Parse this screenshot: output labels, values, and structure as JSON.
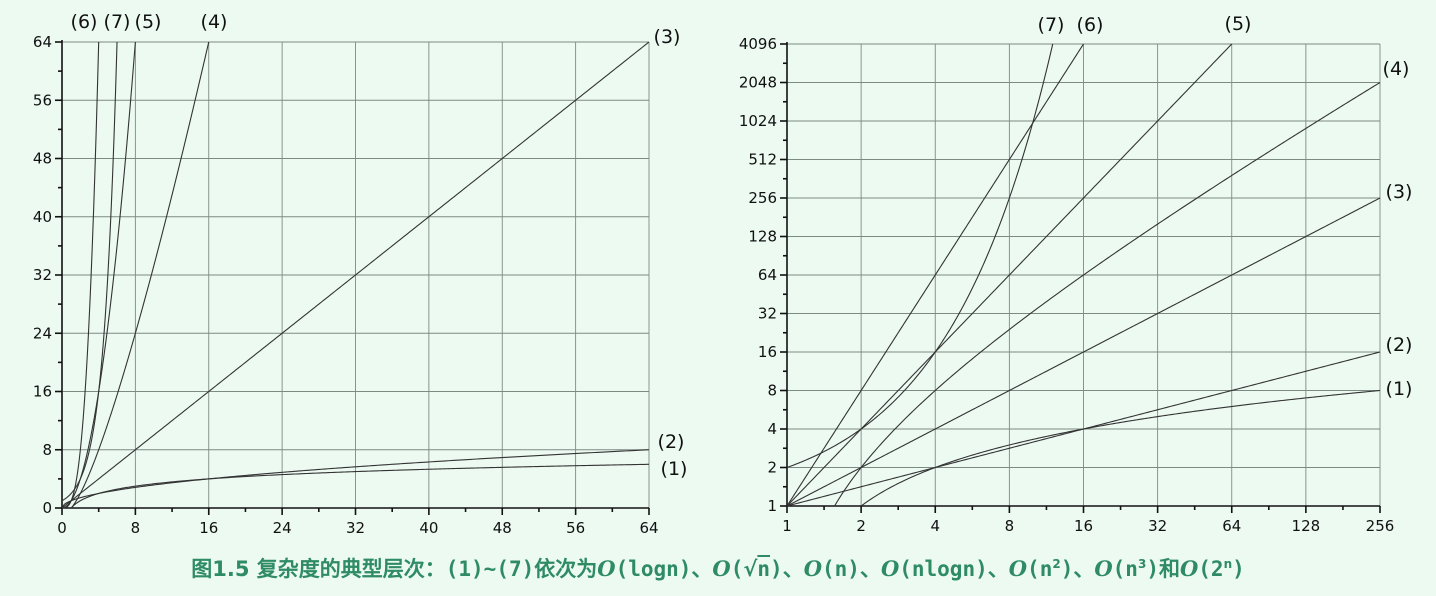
{
  "caption": {
    "prefix": "图1.5 复杂度的典型层次：",
    "range": "(1)~(7)",
    "middle": "依次为",
    "O": "O",
    "c1": "(logn)",
    "sep": "、",
    "c2_open": "(",
    "c2_sqrt": "√",
    "c2_n": "n",
    "c2_close": ")",
    "c3": "(n)",
    "c4": "(nlogn)",
    "c5_base": "(n",
    "c5_exp": "2",
    "c6_base": "(n",
    "c6_exp": "3",
    "close": ")",
    "and": "和",
    "c7_base": "(2",
    "c7_exp": "n"
  },
  "chart_data": [
    {
      "type": "line",
      "title": "",
      "xlabel": "",
      "ylabel": "",
      "xlim": [
        0,
        64
      ],
      "ylim": [
        0,
        64
      ],
      "x_scale": "linear",
      "y_scale": "linear",
      "x_ticks": [
        "0",
        "8",
        "16",
        "24",
        "32",
        "40",
        "48",
        "56",
        "64"
      ],
      "y_ticks": [
        "0",
        "8",
        "16",
        "24",
        "32",
        "40",
        "48",
        "56",
        "64"
      ],
      "grid": true,
      "series": [
        {
          "name": "(1)",
          "function": "logn"
        },
        {
          "name": "(2)",
          "function": "sqrt(n)"
        },
        {
          "name": "(3)",
          "function": "n"
        },
        {
          "name": "(4)",
          "function": "nlogn"
        },
        {
          "name": "(5)",
          "function": "n^2"
        },
        {
          "name": "(6)",
          "function": "n^3"
        },
        {
          "name": "(7)",
          "function": "2^n"
        }
      ]
    },
    {
      "type": "line",
      "title": "",
      "xlabel": "",
      "ylabel": "",
      "xlim": [
        1,
        256
      ],
      "ylim": [
        1,
        4096
      ],
      "x_scale": "log2",
      "y_scale": "log2",
      "x_ticks": [
        "1",
        "2",
        "4",
        "8",
        "16",
        "32",
        "64",
        "128",
        "256"
      ],
      "y_ticks": [
        "1",
        "2",
        "4",
        "8",
        "16",
        "32",
        "64",
        "128",
        "256",
        "512",
        "1024",
        "2048",
        "4096"
      ],
      "grid": true,
      "series": [
        {
          "name": "(1)",
          "function": "logn"
        },
        {
          "name": "(2)",
          "function": "sqrt(n)"
        },
        {
          "name": "(3)",
          "function": "n"
        },
        {
          "name": "(4)",
          "function": "nlogn"
        },
        {
          "name": "(5)",
          "function": "n^2"
        },
        {
          "name": "(6)",
          "function": "n^3"
        },
        {
          "name": "(7)",
          "function": "2^n"
        }
      ]
    }
  ]
}
